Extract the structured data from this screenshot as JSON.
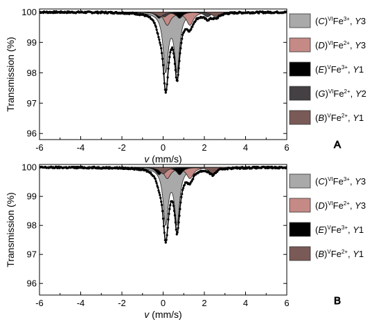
{
  "chart_data": [
    {
      "type": "line",
      "panel_label": "A",
      "xlabel_italic": "v",
      "xlabel_rest": " (mm/s)",
      "ylabel": "Transmission (%)",
      "xlim": [
        -6,
        6
      ],
      "ylim": [
        95.8,
        100.1
      ],
      "xticks": [
        -6,
        -4,
        -2,
        0,
        2,
        4,
        6
      ],
      "yticks": [
        96,
        97,
        98,
        99,
        100
      ],
      "legend_position": "right",
      "components": [
        {
          "id": "C",
          "color": "#a9a9a9",
          "legend_pre": "(C) ",
          "legend_sup": "VI",
          "legend_ion": "Fe",
          "legend_charge": "3+",
          "legend_post": ", Y3",
          "doublet_center": 0.4,
          "splitting": 0.55,
          "depth": 3.75,
          "width": 0.3
        },
        {
          "id": "D",
          "color": "#c58a86",
          "legend_pre": "(D) ",
          "legend_sup": "VI",
          "legend_ion": "Fe",
          "legend_charge": "2+",
          "legend_post": ", Y3",
          "doublet_center": 0.75,
          "splitting": 1.1,
          "depth": 0.85,
          "width": 0.4
        },
        {
          "id": "E",
          "color": "#000000",
          "legend_pre": "(E) ",
          "legend_sup": "V",
          "legend_ion": "Fe",
          "legend_charge": "3+",
          "legend_post": ", Y1",
          "doublet_center": 0.3,
          "splitting": 1.0,
          "depth": 0.4,
          "width": 0.35
        },
        {
          "id": "G",
          "color": "#444044",
          "legend_pre": "(G) ",
          "legend_sup": "VI",
          "legend_ion": "Fe",
          "legend_charge": "2+",
          "legend_post": ", Y2",
          "doublet_center": 1.1,
          "splitting": 2.1,
          "depth": 0.32,
          "width": 0.4
        },
        {
          "id": "B",
          "color": "#7a5a56",
          "legend_pre": "(B) ",
          "legend_sup": "V",
          "legend_ion": "Fe",
          "legend_charge": "2+",
          "legend_post": ", Y1",
          "doublet_center": 1.2,
          "splitting": 2.7,
          "depth": 0.3,
          "width": 0.45
        }
      ],
      "observed_minima": [
        {
          "x": 0.15,
          "y": 96.55
        },
        {
          "x": 0.6,
          "y": 96.15
        }
      ]
    },
    {
      "type": "line",
      "panel_label": "B",
      "xlabel_italic": "v",
      "xlabel_rest": " (mm/s)",
      "ylabel": "Transmission (%)",
      "xlim": [
        -6,
        6
      ],
      "ylim": [
        95.6,
        100.1
      ],
      "xticks": [
        -6,
        -4,
        -2,
        0,
        2,
        4,
        6
      ],
      "yticks": [
        96,
        97,
        98,
        99,
        100
      ],
      "legend_position": "right",
      "components": [
        {
          "id": "C",
          "color": "#a9a9a9",
          "legend_pre": "(C) ",
          "legend_sup": "VI",
          "legend_ion": "Fe",
          "legend_charge": "3+",
          "legend_post": ", Y3",
          "doublet_center": 0.4,
          "splitting": 0.55,
          "depth": 3.75,
          "width": 0.3
        },
        {
          "id": "D",
          "color": "#c58a86",
          "legend_pre": "(D) ",
          "legend_sup": "VI",
          "legend_ion": "Fe",
          "legend_charge": "2+",
          "legend_post": ", Y3",
          "doublet_center": 0.75,
          "splitting": 1.1,
          "depth": 0.75,
          "width": 0.4
        },
        {
          "id": "E",
          "color": "#000000",
          "legend_pre": "(E) ",
          "legend_sup": "V",
          "legend_ion": "Fe",
          "legend_charge": "3+",
          "legend_post": ", Y1",
          "doublet_center": 0.3,
          "splitting": 1.0,
          "depth": 0.5,
          "width": 0.35
        },
        {
          "id": "B",
          "color": "#7a5a56",
          "legend_pre": "(B) ",
          "legend_sup": "V",
          "legend_ion": "Fe",
          "legend_charge": "2+",
          "legend_post": ", Y1",
          "doublet_center": 1.2,
          "splitting": 2.4,
          "depth": 0.45,
          "width": 0.4
        }
      ],
      "observed_minima": [
        {
          "x": 0.15,
          "y": 96.7
        },
        {
          "x": 0.6,
          "y": 96.2
        }
      ]
    }
  ]
}
